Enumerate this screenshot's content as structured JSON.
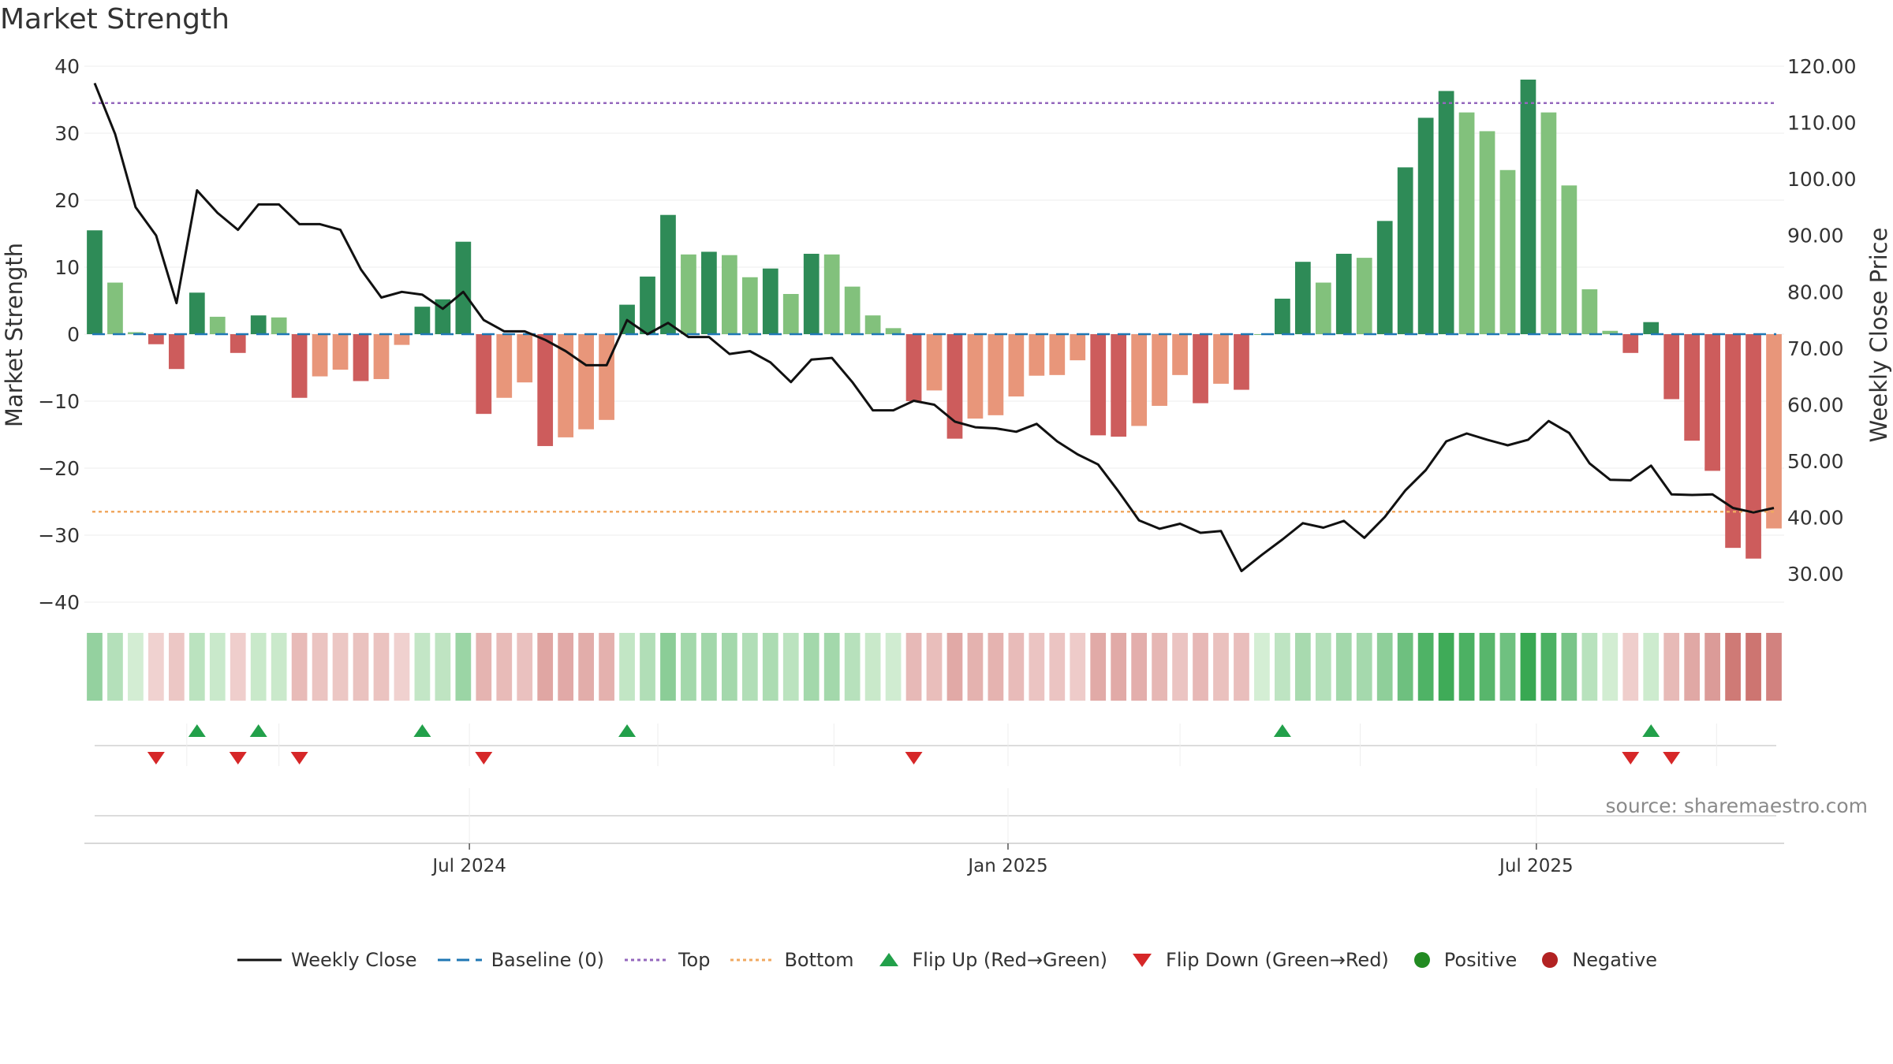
{
  "title": "Market Strength",
  "source": "source: sharemaestro.com",
  "colors": {
    "pos_strong": "#2e8b57",
    "pos_weak": "#82c17c",
    "neg_strong": "#cd5c5c",
    "neg_weak": "#e8967a",
    "close_line": "#111111",
    "baseline": "#1f77b4",
    "top": "#9467bd",
    "bottom": "#f0a860",
    "flip_up": "#22a04a",
    "flip_down": "#d62728",
    "positive": "#228b22",
    "negative": "#b22222"
  },
  "chart_data": {
    "type": "bar",
    "title": "Market Strength",
    "ylabel": "Market Strength",
    "y2label": "Weekly Close Price",
    "ylim": [
      -40,
      40
    ],
    "y2lim": [
      25,
      120
    ],
    "yticks": [
      "40",
      "30",
      "20",
      "10",
      "0",
      "−10",
      "−20",
      "−30",
      "−40"
    ],
    "y2ticks": [
      "120.00",
      "110.00",
      "100.00",
      "90.00",
      "80.00",
      "70.00",
      "60.00",
      "50.00",
      "40.00",
      "30.00"
    ],
    "xticks": [
      {
        "label": "Jul 2024",
        "index": 18.3
      },
      {
        "label": "Jan 2025",
        "index": 44.6
      },
      {
        "label": "Jul 2025",
        "index": 70.4
      }
    ],
    "top_level": 34.5,
    "bottom_level": -26.5,
    "strength": [
      15.5,
      7.7,
      0.3,
      -1.5,
      -5.2,
      6.2,
      2.6,
      -2.8,
      2.8,
      2.5,
      -9.5,
      -6.3,
      -5.3,
      -7.0,
      -6.7,
      -1.6,
      4.1,
      5.2,
      13.8,
      -11.9,
      -9.5,
      -7.2,
      -16.7,
      -15.4,
      -14.2,
      -12.8,
      4.4,
      8.6,
      17.8,
      11.9,
      12.3,
      11.8,
      8.5,
      9.8,
      6.0,
      12.0,
      11.9,
      7.1,
      2.8,
      0.9,
      -10.0,
      -8.4,
      -15.6,
      -12.6,
      -12.1,
      -9.3,
      -6.2,
      -6.1,
      -3.9,
      -15.1,
      -15.3,
      -13.7,
      -10.7,
      -6.1,
      -10.3,
      -7.4,
      -8.3,
      0.0,
      5.3,
      10.8,
      7.7,
      12.0,
      11.4,
      16.9,
      24.9,
      32.3,
      36.3,
      33.1,
      30.3,
      24.5,
      38.0,
      33.1,
      22.2,
      6.7,
      0.5,
      -2.8,
      1.8,
      -9.7,
      -15.9,
      -20.4,
      -31.9,
      -33.5,
      -29.0
    ],
    "strength_shade": [
      "s",
      "w",
      "w",
      "s",
      "s",
      "s",
      "w",
      "s",
      "s",
      "w",
      "s",
      "w",
      "w",
      "s",
      "w",
      "w",
      "s",
      "s",
      "s",
      "s",
      "w",
      "w",
      "s",
      "w",
      "w",
      "w",
      "s",
      "s",
      "s",
      "w",
      "s",
      "w",
      "w",
      "s",
      "w",
      "s",
      "w",
      "w",
      "w",
      "w",
      "s",
      "w",
      "s",
      "w",
      "w",
      "w",
      "w",
      "w",
      "w",
      "s",
      "s",
      "w",
      "w",
      "w",
      "s",
      "w",
      "s",
      "w",
      "s",
      "s",
      "w",
      "s",
      "w",
      "s",
      "s",
      "s",
      "s",
      "w",
      "w",
      "w",
      "s",
      "w",
      "w",
      "w",
      "w",
      "s",
      "s",
      "s",
      "s",
      "s",
      "s",
      "s",
      "w"
    ],
    "weekly_close": [
      117,
      108,
      95,
      90,
      78,
      98,
      94,
      91,
      95.5,
      95.5,
      92,
      92,
      91,
      84,
      79,
      80,
      79.5,
      77,
      80,
      75,
      73,
      73,
      71.5,
      69.5,
      67,
      67,
      75,
      72.5,
      74.5,
      72,
      72,
      69,
      69.5,
      67.5,
      64,
      68,
      68.3,
      64,
      59,
      59,
      60.7,
      60,
      57,
      56,
      55.8,
      55.2,
      56.6,
      53.5,
      51.2,
      49.4,
      44.6,
      39.5,
      38,
      38.9,
      37.3,
      37.6,
      30.5,
      33.4,
      36.1,
      39,
      38.2,
      39.4,
      36.4,
      40.1,
      44.8,
      48.4,
      53.5,
      54.9,
      53.8,
      52.8,
      53.8,
      57.1,
      55,
      49.6,
      46.7,
      46.6,
      49.2,
      44.1,
      44,
      44.1,
      41.7,
      40.9,
      41.7
    ],
    "series": [
      {
        "name": "Weekly Close"
      },
      {
        "name": "Baseline (0)"
      },
      {
        "name": "Top"
      },
      {
        "name": "Bottom"
      },
      {
        "name": "Flip Up (Red→Green)"
      },
      {
        "name": "Flip Down (Green→Red)"
      },
      {
        "name": "Positive"
      },
      {
        "name": "Negative"
      }
    ],
    "flip_up_indices": [
      5,
      8,
      16,
      26,
      58,
      76
    ],
    "flip_down_indices": [
      3,
      7,
      10,
      19,
      40,
      75,
      77
    ],
    "heat_strip": "sign-colored intensity of market strength per week"
  }
}
